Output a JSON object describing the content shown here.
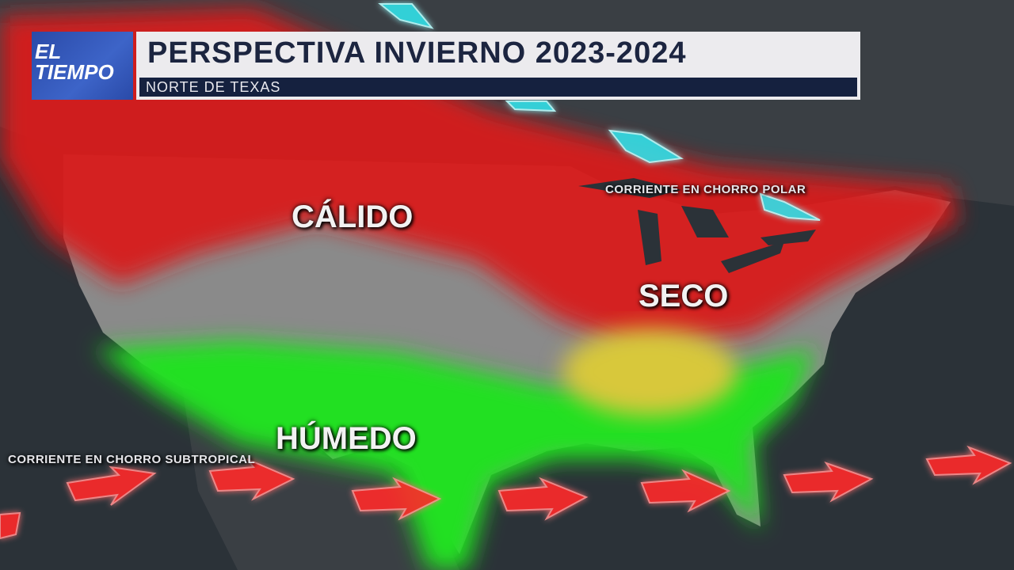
{
  "header": {
    "logo_line1": "EL",
    "logo_line2": "TIEMPO",
    "title": "PERSPECTIVA INVIERNO 2023-2024",
    "subtitle": "NORTE DE TEXAS"
  },
  "labels": {
    "warm": "CÁLIDO",
    "dry": "SECO",
    "wet": "HÚMEDO",
    "polar_jet": "CORRIENTE EN CHORRO POLAR",
    "subtropical_jet": "CORRIENTE EN CHORRO SUBTROPICAL"
  },
  "colors": {
    "warm": "#d81e1e",
    "wet": "#22e022",
    "dry": "#d8c83a",
    "normal": "#8a8a8a",
    "polar_jet": "#33e0e8",
    "subtropical_jet": "#ff2a2a",
    "ocean": "#2b3238"
  }
}
